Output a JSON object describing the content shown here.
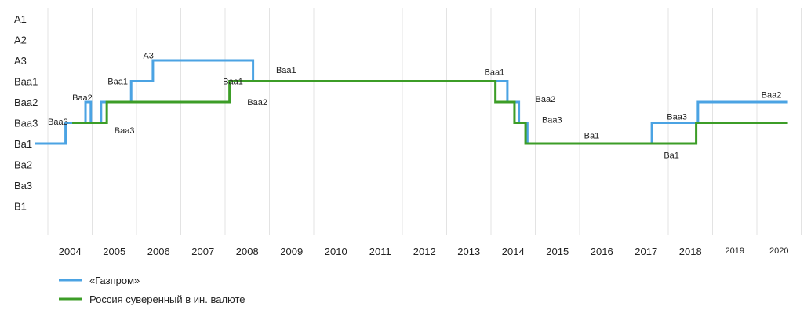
{
  "chart_data": {
    "type": "line",
    "step": "after",
    "title": "",
    "xlabel": "",
    "ylabel": "",
    "y_categories": [
      "A1",
      "A2",
      "A3",
      "Baa1",
      "Baa2",
      "Baa3",
      "Ba1",
      "Ba2",
      "Ba3",
      "B1"
    ],
    "x_ticks": [
      "2004",
      "2005",
      "2006",
      "2007",
      "2008",
      "2009",
      "2010",
      "2011",
      "2012",
      "2013",
      "2014",
      "2015",
      "2016",
      "2017",
      "2018",
      "2019",
      "2020"
    ],
    "xlim": [
      2004.0,
      2020.5
    ],
    "grid": "vertical",
    "legend_position": "bottom-left",
    "series": [
      {
        "name": "«Газпром»",
        "color": "#4ba3e3",
        "points": [
          {
            "x": 2003.7,
            "y": "Ba1"
          },
          {
            "x": 2004.4,
            "y": "Baa3"
          },
          {
            "x": 2004.85,
            "y": "Baa2"
          },
          {
            "x": 2004.97,
            "y": "Baa3"
          },
          {
            "x": 2005.2,
            "y": "Baa2"
          },
          {
            "x": 2005.88,
            "y": "Baa1"
          },
          {
            "x": 2006.37,
            "y": "A3"
          },
          {
            "x": 2008.63,
            "y": "Baa1"
          },
          {
            "x": 2014.37,
            "y": "Baa2"
          },
          {
            "x": 2014.63,
            "y": "Baa3"
          },
          {
            "x": 2014.82,
            "y": "Ba1"
          },
          {
            "x": 2017.63,
            "y": "Baa3"
          },
          {
            "x": 2018.67,
            "y": "Baa2"
          },
          {
            "x": 2020.7,
            "y": "Baa2"
          }
        ]
      },
      {
        "name": "Россия суверенный в ин. валюте",
        "color": "#3c9d27",
        "points": [
          {
            "x": 2004.55,
            "y": "Baa3"
          },
          {
            "x": 2005.33,
            "y": "Baa2"
          },
          {
            "x": 2008.1,
            "y": "Baa1"
          },
          {
            "x": 2014.1,
            "y": "Baa2"
          },
          {
            "x": 2014.53,
            "y": "Baa3"
          },
          {
            "x": 2014.78,
            "y": "Ba1"
          },
          {
            "x": 2018.63,
            "y": "Baa3"
          },
          {
            "x": 2020.7,
            "y": "Baa3"
          }
        ]
      }
    ],
    "annotations": [
      {
        "text": "Baa3",
        "x": 2004.0,
        "y": "Baa3",
        "dy": -0.05
      },
      {
        "text": "Baa2",
        "x": 2004.55,
        "y": "Baa2",
        "dy": -0.22
      },
      {
        "text": "Baa3",
        "x": 2005.5,
        "y": "Baa3",
        "dy": 0.35
      },
      {
        "text": "Baa1",
        "x": 2005.35,
        "y": "Baa1",
        "dy": 0.0
      },
      {
        "text": "A3",
        "x": 2006.15,
        "y": "A3",
        "dy": -0.25
      },
      {
        "text": "Baa1",
        "x": 2007.95,
        "y": "Baa1",
        "dy": 0.0
      },
      {
        "text": "Baa2",
        "x": 2008.5,
        "y": "Baa2",
        "dy": 0.0
      },
      {
        "text": "Baa1",
        "x": 2009.15,
        "y": "Baa1",
        "dy": -0.55
      },
      {
        "text": "Baa1",
        "x": 2013.85,
        "y": "Baa1",
        "dy": -0.45
      },
      {
        "text": "Baa2",
        "x": 2015.0,
        "y": "Baa2",
        "dy": -0.15
      },
      {
        "text": "Baa3",
        "x": 2015.15,
        "y": "Baa3",
        "dy": -0.15
      },
      {
        "text": "Ba1",
        "x": 2016.1,
        "y": "Ba1",
        "dy": -0.4
      },
      {
        "text": "Ba1",
        "x": 2017.9,
        "y": "Ba1",
        "dy": 0.55
      },
      {
        "text": "Baa3",
        "x": 2017.97,
        "y": "Baa3",
        "dy": -0.3
      },
      {
        "text": "Baa2",
        "x": 2020.1,
        "y": "Baa2",
        "dy": -0.35
      }
    ]
  }
}
